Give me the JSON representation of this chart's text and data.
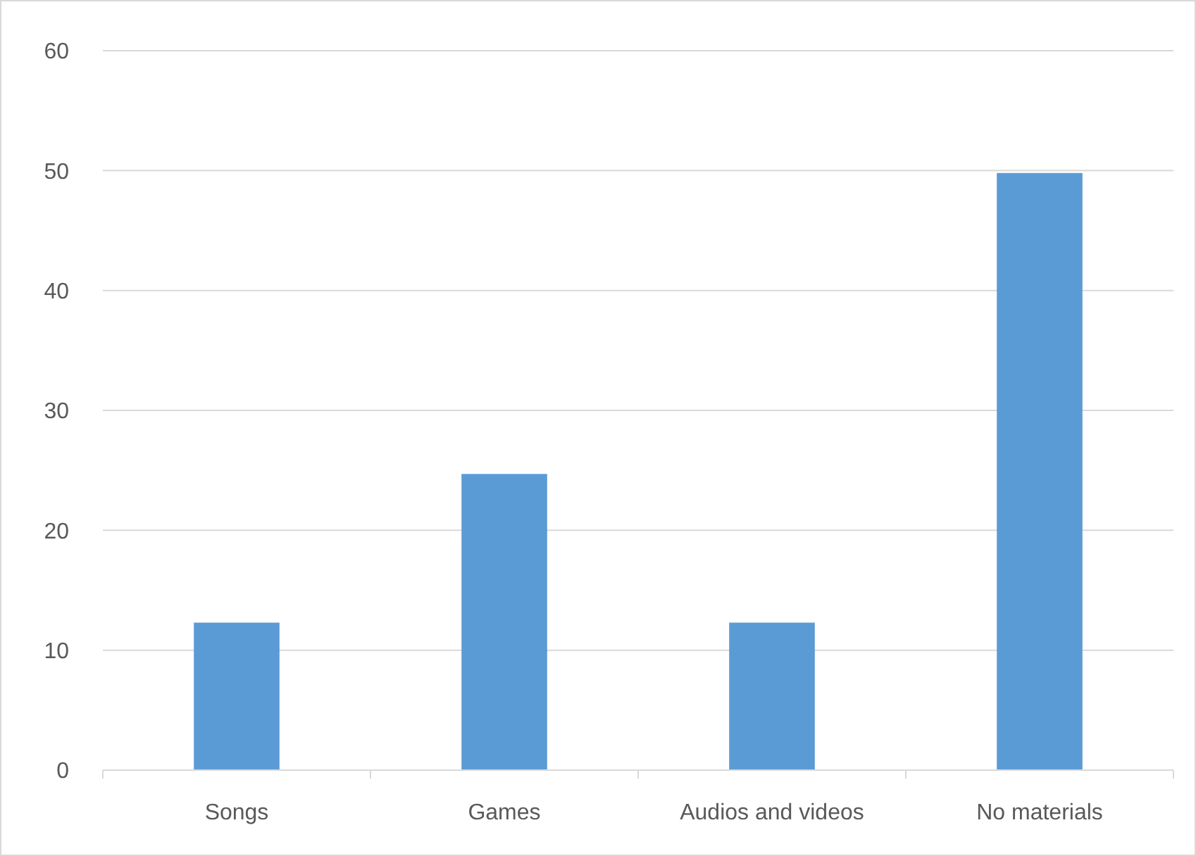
{
  "chart_data": {
    "type": "bar",
    "categories": [
      "Songs",
      "Games",
      "Audios and videos",
      "No materials"
    ],
    "values": [
      12.3,
      24.7,
      12.3,
      49.8
    ],
    "color": "#5b9bd5",
    "ylim": [
      0,
      60
    ],
    "yticks": [
      0,
      10,
      20,
      30,
      40,
      50,
      60
    ],
    "grid": "y"
  }
}
